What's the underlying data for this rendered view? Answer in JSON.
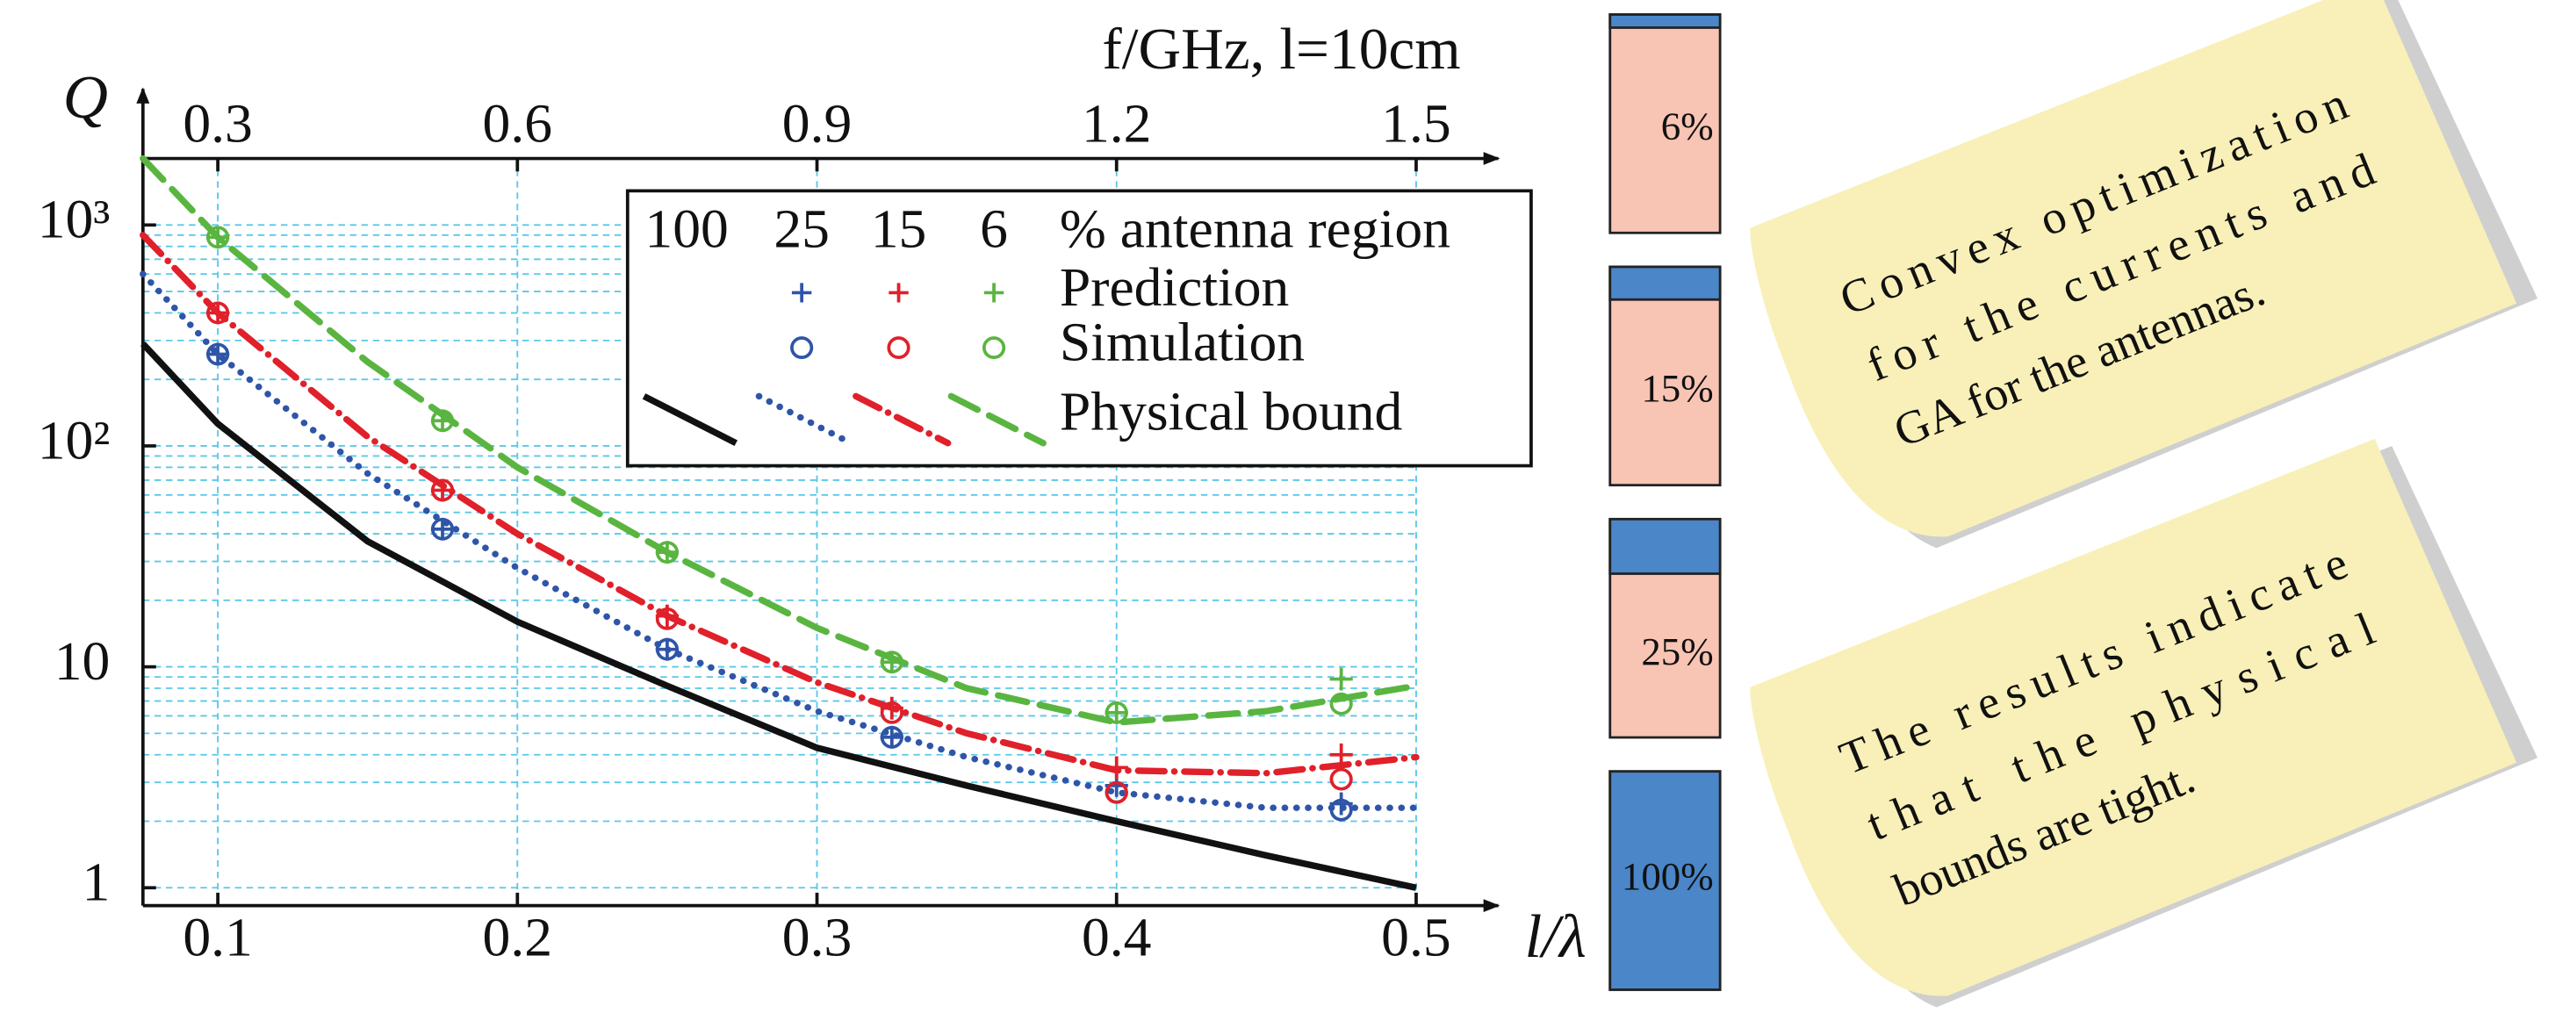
{
  "chart_data": [
    {
      "type": "line",
      "x_label": "l/λ",
      "y_label": "Q",
      "x2_label": "f/GHz, l=10cm",
      "xlim": [
        0.075,
        0.5
      ],
      "xticks": [
        0.1,
        0.2,
        0.3,
        0.4,
        0.5
      ],
      "x2lim": [
        0.225,
        1.5
      ],
      "x2ticks": [
        0.3,
        0.6,
        0.9,
        1.2,
        1.5
      ],
      "ylim": [
        0.83,
        2000
      ],
      "log_y": true,
      "yticks": [
        1,
        10,
        {
          "value": 100,
          "label": "10²"
        },
        {
          "value": 1000,
          "label": "10³"
        }
      ],
      "minor_yticks": [
        2,
        3,
        4,
        5,
        6,
        7,
        8,
        9,
        20,
        30,
        40,
        50,
        60,
        70,
        80,
        90,
        200,
        300,
        400,
        500,
        600,
        700,
        800,
        900
      ],
      "grid": true,
      "grid_color": "#5bc8e8",
      "legend": {
        "header": "% antenna region",
        "rows": [
          "Prediction",
          "Simulation",
          "Physical bound"
        ]
      },
      "x": [
        0.075,
        0.1,
        0.15,
        0.2,
        0.25,
        0.3,
        0.35,
        0.4,
        0.45,
        0.5
      ],
      "marker_x": [
        0.1,
        0.175,
        0.25,
        0.325,
        0.4,
        0.475
      ],
      "series": [
        {
          "name": "100",
          "color": "#111111",
          "line_style": "solid",
          "values": [
            290,
            126,
            37,
            16,
            8.2,
            4.3,
            2.9,
            2.0,
            1.4,
            1.0
          ]
        },
        {
          "name": "25",
          "color": "#2f55a8",
          "line_style": "dotted",
          "values": [
            600,
            260,
            75,
            28,
            12,
            6.3,
            3.9,
            2.7,
            2.3,
            2.3
          ],
          "prediction": [
            260,
            42,
            12,
            4.8,
            2.9,
            2.4
          ],
          "simulation": [
            260,
            42,
            12,
            4.8,
            2.7,
            2.25
          ]
        },
        {
          "name": "15",
          "color": "#e0202a",
          "line_style": "dashdot",
          "values": [
            900,
            400,
            110,
            40,
            17,
            8.5,
            5,
            3.4,
            3.3,
            3.9
          ],
          "prediction": [
            400,
            63,
            17,
            6.5,
            3.5,
            4.0
          ],
          "simulation": [
            400,
            63,
            16.5,
            6.2,
            2.7,
            3.1
          ]
        },
        {
          "name": "6",
          "color": "#5ab540",
          "line_style": "dashed",
          "values": [
            2000,
            880,
            240,
            80,
            33,
            15,
            8,
            5.6,
            6.3,
            8.2
          ],
          "prediction": [
            880,
            130,
            33,
            10.5,
            6.2,
            8.8
          ],
          "simulation": [
            880,
            130,
            33,
            10.5,
            6.2,
            6.8
          ]
        }
      ]
    },
    {
      "type": "region-bars",
      "values": [
        6,
        15,
        25,
        100
      ],
      "value_labels": [
        "6%",
        "15%",
        "25%",
        "100%"
      ],
      "ylim": [
        0,
        100
      ],
      "fill_color": "#4a86c8",
      "rest_color": "#f8c4b4"
    }
  ],
  "notes": [
    [
      "Convex optimization",
      "for the currents and",
      "GA for the antennas."
    ],
    [
      "The results indicate",
      "that the physical",
      "bounds are tight."
    ]
  ]
}
